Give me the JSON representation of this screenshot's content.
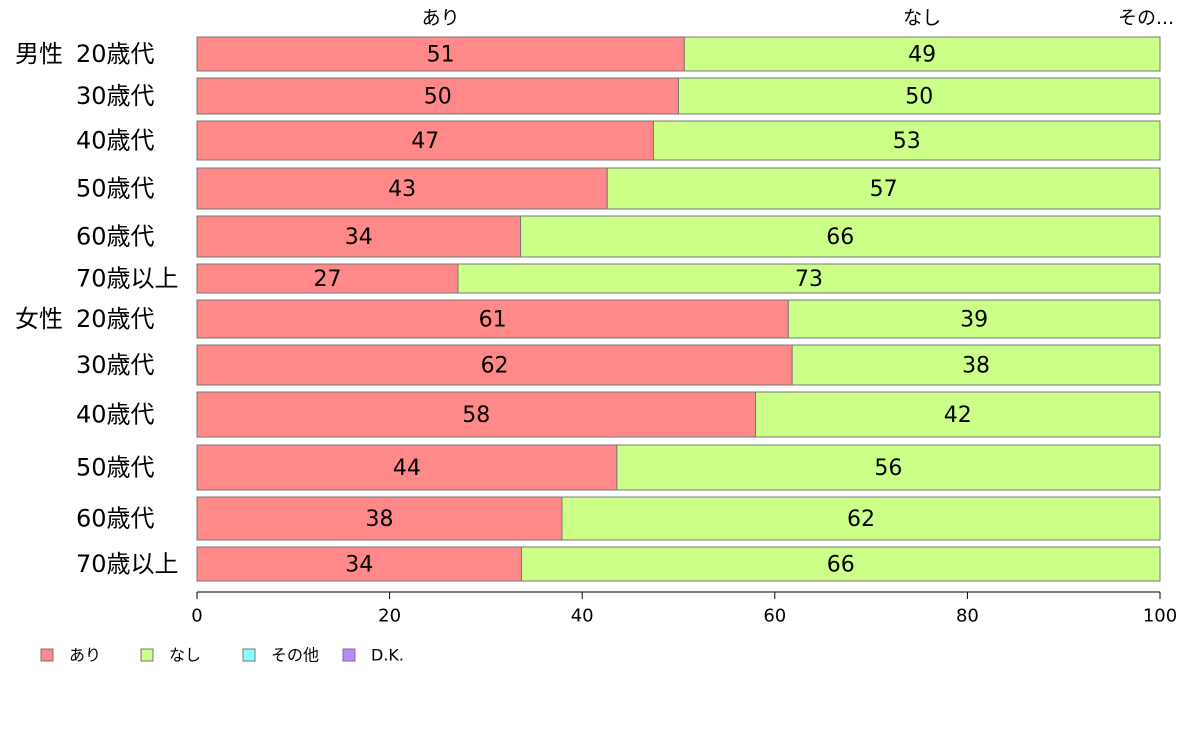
{
  "chart_data": {
    "type": "bar",
    "orientation": "horizontal",
    "stacked": true,
    "xlim": [
      0,
      100
    ],
    "xticks": [
      0,
      20,
      40,
      60,
      80,
      100
    ],
    "grid": false,
    "legend_position": "bottom-left",
    "top_labels": [
      "あり",
      "なし",
      "その..."
    ],
    "categories": [
      {
        "group": "男性",
        "label": "20歳代"
      },
      {
        "group": "",
        "label": "30歳代"
      },
      {
        "group": "",
        "label": "40歳代"
      },
      {
        "group": "",
        "label": "50歳代"
      },
      {
        "group": "",
        "label": "60歳代"
      },
      {
        "group": "",
        "label": "70歳以上"
      },
      {
        "group": "女性",
        "label": "20歳代"
      },
      {
        "group": "",
        "label": "30歳代"
      },
      {
        "group": "",
        "label": "40歳代"
      },
      {
        "group": "",
        "label": "50歳代"
      },
      {
        "group": "",
        "label": "60歳代"
      },
      {
        "group": "",
        "label": "70歳以上"
      }
    ],
    "series": [
      {
        "name": "あり",
        "color": "#ff8888",
        "values": [
          50.6,
          50,
          47.4,
          42.6,
          33.6,
          27.1,
          61.4,
          61.8,
          58,
          43.6,
          37.9,
          33.7
        ]
      },
      {
        "name": "なし",
        "color": "#ccff88",
        "values": [
          49.4,
          50,
          52.6,
          57.4,
          66.4,
          72.9,
          38.6,
          38.2,
          42,
          56.4,
          62.1,
          66.3
        ]
      },
      {
        "name": "その他",
        "color": "#88ffff",
        "values": [
          0,
          0,
          0,
          0,
          0,
          0,
          0,
          0,
          0,
          0,
          0,
          0
        ]
      },
      {
        "name": "D.K.",
        "color": "#bb88ff",
        "values": [
          0,
          0,
          0,
          0,
          0,
          0,
          0,
          0,
          0,
          0,
          0,
          0
        ]
      }
    ],
    "data_labels": [
      [
        "51",
        "50",
        "47",
        "43",
        "34",
        "27",
        "61",
        "62",
        "58",
        "44",
        "38",
        "34"
      ],
      [
        "49",
        "50",
        "53",
        "57",
        "66",
        "73",
        "39",
        "38",
        "42",
        "56",
        "62",
        "66"
      ]
    ]
  }
}
